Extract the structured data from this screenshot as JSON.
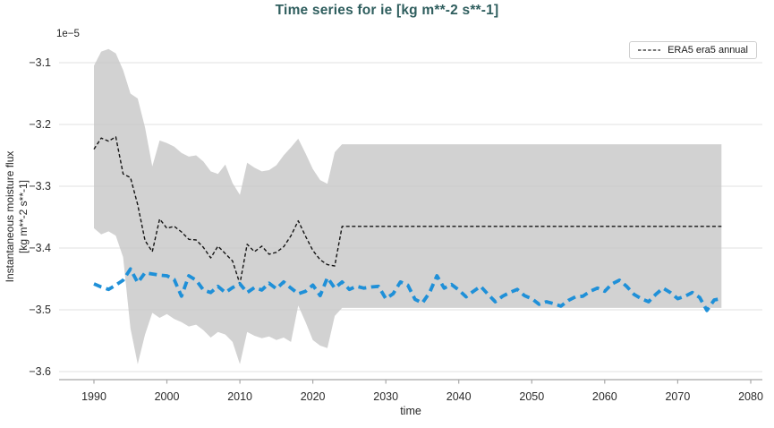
{
  "chart_data": {
    "type": "line",
    "title": "Time series for ie [kg m**-2 s**-1]",
    "xlabel": "time",
    "ylabel": "Instantaneous moisture flux [kg m**-2 s**-1]",
    "ylabel_lines": [
      "Instantaneous moisture flux",
      "[kg m**-2 s**-1]"
    ],
    "y_offset": "1e−5",
    "xlim": [
      1985.22,
      2081.6
    ],
    "ylim": [
      -3.6145,
      -3.0638
    ],
    "x_ticks": [
      1990,
      2000,
      2010,
      2020,
      2030,
      2040,
      2050,
      2060,
      2070,
      2080
    ],
    "y_ticks": [
      -3.1,
      -3.2,
      -3.3,
      -3.4,
      -3.5,
      -3.6
    ],
    "grid": "horizontal",
    "legend_position": "top-right",
    "colors": {
      "title": "#2f5e5e",
      "band": "#d2d2d2",
      "grid": "#c6c6c6",
      "spine": "#a8a8a8",
      "era5": "#141414",
      "blue": "#1f90d8",
      "tick_text": "#2b2b2b"
    },
    "band": {
      "name": "ensemble spread band",
      "color": "#d2d2d2",
      "x_start": 1990,
      "extend_to": 2076,
      "upper": [
        -3.105,
        -3.082,
        -3.078,
        -3.085,
        -3.112,
        -3.15,
        -3.158,
        -3.205,
        -3.268,
        -3.226,
        -3.23,
        -3.236,
        -3.246,
        -3.252,
        -3.25,
        -3.26,
        -3.276,
        -3.28,
        -3.265,
        -3.295,
        -3.314,
        -3.262,
        -3.27,
        -3.276,
        -3.274,
        -3.266,
        -3.25,
        -3.237,
        -3.223,
        -3.247,
        -3.272,
        -3.29,
        -3.296,
        -3.245,
        -3.232
      ],
      "lower": [
        -3.368,
        -3.378,
        -3.373,
        -3.38,
        -3.415,
        -3.53,
        -3.588,
        -3.54,
        -3.505,
        -3.513,
        -3.507,
        -3.515,
        -3.52,
        -3.527,
        -3.524,
        -3.533,
        -3.545,
        -3.536,
        -3.54,
        -3.552,
        -3.588,
        -3.536,
        -3.542,
        -3.546,
        -3.543,
        -3.549,
        -3.545,
        -3.552,
        -3.493,
        -3.52,
        -3.549,
        -3.558,
        -3.562,
        -3.51,
        -3.497
      ]
    },
    "series": [
      {
        "name": "ERA5 era5 annual",
        "color": "#141414",
        "dash": [
          4,
          2.6
        ],
        "width": 1.4,
        "x_start": 1990,
        "extend_to": 2076,
        "values": [
          -3.24,
          -3.222,
          -3.227,
          -3.22,
          -3.28,
          -3.286,
          -3.33,
          -3.388,
          -3.406,
          -3.353,
          -3.368,
          -3.365,
          -3.374,
          -3.386,
          -3.387,
          -3.399,
          -3.416,
          -3.397,
          -3.409,
          -3.421,
          -3.458,
          -3.394,
          -3.406,
          -3.397,
          -3.41,
          -3.407,
          -3.398,
          -3.38,
          -3.356,
          -3.381,
          -3.404,
          -3.419,
          -3.427,
          -3.429,
          -3.365
        ]
      },
      {
        "name": "blue dashed series",
        "color": "#1f90d8",
        "dash": [
          9,
          5.5
        ],
        "width": 3.8,
        "x_start": 1990,
        "extend_to": null,
        "values": [
          -3.458,
          -3.463,
          -3.467,
          -3.46,
          -3.452,
          -3.434,
          -3.456,
          -3.44,
          -3.442,
          -3.444,
          -3.445,
          -3.451,
          -3.478,
          -3.445,
          -3.452,
          -3.468,
          -3.472,
          -3.462,
          -3.472,
          -3.464,
          -3.458,
          -3.472,
          -3.464,
          -3.468,
          -3.457,
          -3.466,
          -3.455,
          -3.465,
          -3.474,
          -3.47,
          -3.46,
          -3.477,
          -3.448,
          -3.465,
          -3.455,
          -3.467,
          -3.462,
          -3.465,
          -3.463,
          -3.462,
          -3.482,
          -3.474,
          -3.455,
          -3.46,
          -3.483,
          -3.489,
          -3.472,
          -3.445,
          -3.465,
          -3.459,
          -3.468,
          -3.479,
          -3.47,
          -3.462,
          -3.475,
          -3.487,
          -3.478,
          -3.472,
          -3.467,
          -3.477,
          -3.482,
          -3.491,
          -3.487,
          -3.49,
          -3.494,
          -3.485,
          -3.479,
          -3.478,
          -3.47,
          -3.465,
          -3.47,
          -3.458,
          -3.452,
          -3.462,
          -3.475,
          -3.482,
          -3.487,
          -3.475,
          -3.465,
          -3.472,
          -3.482,
          -3.478,
          -3.472,
          -3.48,
          -3.501,
          -3.484,
          -3.482
        ]
      }
    ],
    "legend": [
      {
        "label": "ERA5 era5 annual",
        "style": "dashed",
        "color": "#141414"
      }
    ]
  }
}
